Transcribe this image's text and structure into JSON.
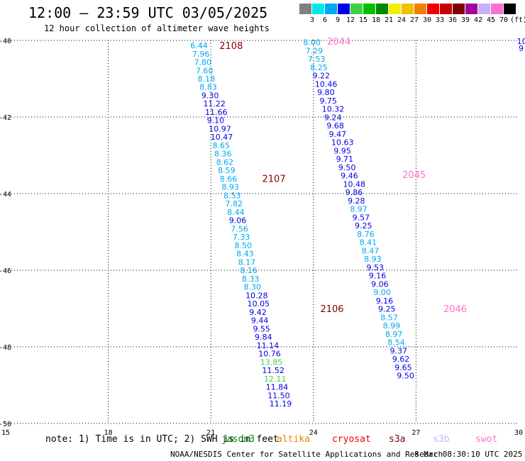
{
  "header": {
    "title": "12:00 – 23:59 UTC 03/05/2025",
    "subtitle": "12 hour collection of altimeter wave heights"
  },
  "legend": {
    "colors": [
      "#808080",
      "#00e8e8",
      "#00a8f0",
      "#0000e8",
      "#40d040",
      "#00c000",
      "#008800",
      "#f0f000",
      "#f0c000",
      "#f08000",
      "#f00000",
      "#c80000",
      "#800000",
      "#a000a0",
      "#c8b0ff",
      "#ff70d0",
      "#000000"
    ],
    "labels": [
      "3",
      "6",
      "9",
      "12",
      "15",
      "18",
      "21",
      "24",
      "27",
      "30",
      "33",
      "36",
      "39",
      "42",
      "45",
      "70"
    ],
    "unit": "(ft)"
  },
  "chart_data": {
    "type": "scatter",
    "xlim": [
      15,
      30
    ],
    "ylim": [
      -50,
      -40
    ],
    "x_ticks": [
      "15",
      "18",
      "21",
      "24",
      "27",
      "30"
    ],
    "y_ticks": [
      "-40",
      "-42",
      "-44",
      "-46",
      "-48",
      "-50"
    ],
    "passes": [
      {
        "name": "2108",
        "label_at": [
          21.25,
          -40.13
        ],
        "color": "#800000"
      },
      {
        "name": "2107",
        "label_at": [
          22.5,
          -43.6
        ],
        "color": "#800000"
      },
      {
        "name": "2106",
        "label_at": [
          24.2,
          -47.0
        ],
        "color": "#800000"
      },
      {
        "name": "2044",
        "label_at": [
          24.4,
          -40.02
        ],
        "color": "#ff70d0"
      },
      {
        "name": "2045",
        "label_at": [
          26.6,
          -43.5
        ],
        "color": "#ff70d0"
      },
      {
        "name": "2046",
        "label_at": [
          27.8,
          -47.0
        ],
        "color": "#ff70d0"
      }
    ],
    "track_a": {
      "x_start": 20.4,
      "y_start": -40.13,
      "dx": 0.0538,
      "dy": 0.2175,
      "values": [
        "6.44",
        "7.96",
        "7.80",
        "7.60",
        "8.18",
        "8.83",
        "9.30",
        "11.22",
        "11.66",
        "9.10",
        "10.97",
        "10.47",
        "8.65",
        "8.36",
        "8.62",
        "8.59",
        "8.66",
        "8.93",
        "8.53",
        "7.82",
        "8.44",
        "9.06",
        "7.56",
        "7.33",
        "8.50",
        "8.43",
        "8.17",
        "8.16",
        "8.33",
        "8.30",
        "10.28",
        "10.05",
        "9.42",
        "9.44",
        "9.55",
        "9.84",
        "11.14",
        "10.76",
        "13.85",
        "11.52",
        "12.11",
        "11.84",
        "11.50",
        "11.19"
      ],
      "colors": [
        "#00a8f0",
        "#00a8f0",
        "#00a8f0",
        "#00a8f0",
        "#00a8f0",
        "#00a8f0",
        "#0000e8",
        "#0000e8",
        "#0000e8",
        "#0000e8",
        "#0000e8",
        "#0000e8",
        "#00a8f0",
        "#00a8f0",
        "#00a8f0",
        "#00a8f0",
        "#00a8f0",
        "#00a8f0",
        "#00a8f0",
        "#00a8f0",
        "#00a8f0",
        "#0000e8",
        "#00a8f0",
        "#00a8f0",
        "#00a8f0",
        "#00a8f0",
        "#00a8f0",
        "#00a8f0",
        "#00a8f0",
        "#00a8f0",
        "#0000e8",
        "#0000e8",
        "#0000e8",
        "#0000e8",
        "#0000e8",
        "#0000e8",
        "#0000e8",
        "#0000e8",
        "#40d040",
        "#0000e8",
        "#40d040",
        "#0000e8",
        "#0000e8",
        "#0000e8"
      ]
    },
    "track_b": {
      "x_start": 23.7,
      "y_start": -40.05,
      "dx": 0.0685,
      "dy": 0.2175,
      "values": [
        "8.00",
        "7.29",
        "7.53",
        "8.25",
        "9.22",
        "10.46",
        "9.80",
        "9.75",
        "10.32",
        "9.24",
        "9.68",
        "9.47",
        "10.63",
        "9.95",
        "9.71",
        "9.50",
        "9.46",
        "10.48",
        "9.86",
        "9.28",
        "8.97",
        "9.57",
        "9.25",
        "8.76",
        "8.41",
        "8.47",
        "8.93",
        "9.53",
        "9.16",
        "9.06",
        "9.00",
        "9.16",
        "9.25",
        "8.57",
        "8.99",
        "8.97",
        "8.54",
        "9.37",
        "9.62",
        "9.65",
        "9.50"
      ],
      "colors": [
        "#00a8f0",
        "#00a8f0",
        "#00a8f0",
        "#00a8f0",
        "#0000e8",
        "#0000e8",
        "#0000e8",
        "#0000e8",
        "#0000e8",
        "#0000e8",
        "#0000e8",
        "#0000e8",
        "#0000e8",
        "#0000e8",
        "#0000e8",
        "#0000e8",
        "#0000e8",
        "#0000e8",
        "#0000e8",
        "#0000e8",
        "#00a8f0",
        "#0000e8",
        "#0000e8",
        "#00a8f0",
        "#00a8f0",
        "#00a8f0",
        "#00a8f0",
        "#0000e8",
        "#0000e8",
        "#0000e8",
        "#00a8f0",
        "#0000e8",
        "#0000e8",
        "#00a8f0",
        "#00a8f0",
        "#00a8f0",
        "#00a8f0",
        "#0000e8",
        "#0000e8",
        "#0000e8",
        "#0000e8"
      ]
    },
    "edge_values": [
      {
        "text": "10",
        "at": [
          29.95,
          -40.02
        ],
        "color": "#0000e8"
      },
      {
        "text": "9",
        "at": [
          30.0,
          -40.2
        ],
        "color": "#0000e8"
      }
    ]
  },
  "note": {
    "text": "note:  1) Time is in UTC; 2) SWH is in feet",
    "satellites": [
      {
        "name": "jason3",
        "color": "#008800"
      },
      {
        "name": "altika",
        "color": "#f08000"
      },
      {
        "name": "cryosat",
        "color": "#f00000"
      },
      {
        "name": "s3a",
        "color": "#800000"
      },
      {
        "name": "s3b",
        "color": "#c8b0ff"
      },
      {
        "name": "swot",
        "color": "#ff70d0"
      }
    ]
  },
  "footer": {
    "credit": "NOAA/NESDIS Center for Satellite Applications and Research",
    "timestamp": "8 Mar 08:30:10 UTC 2025"
  }
}
